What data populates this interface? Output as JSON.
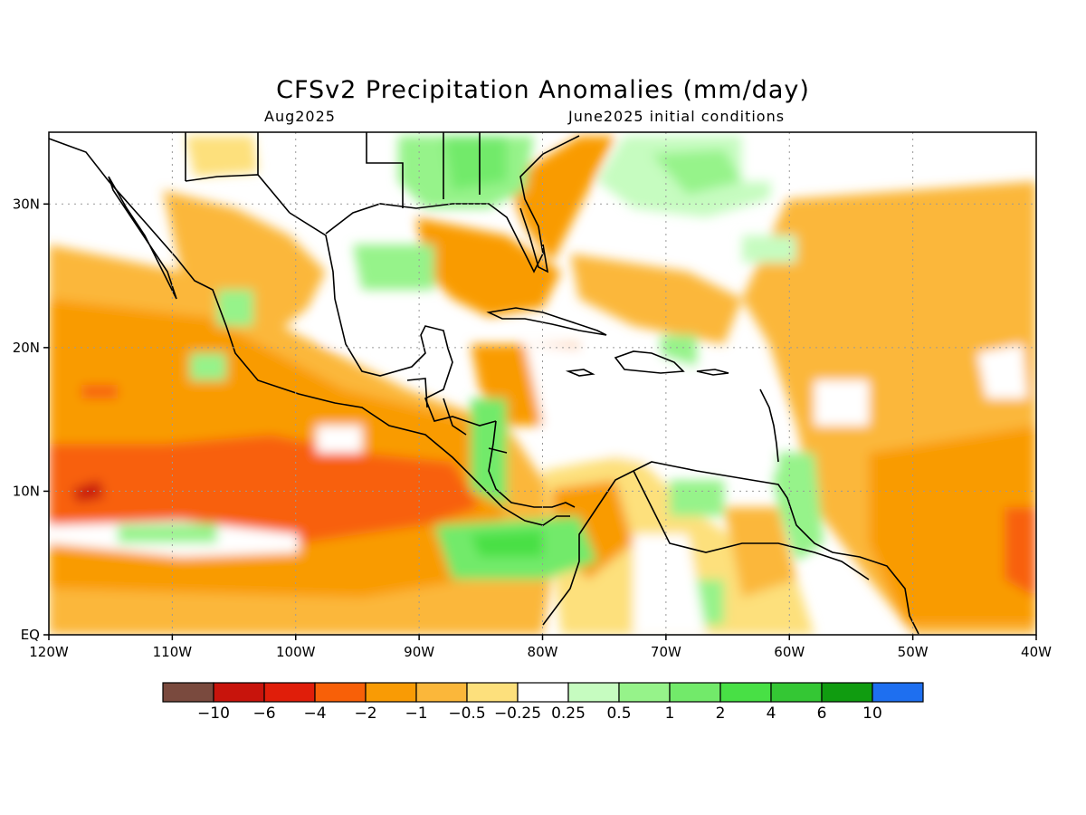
{
  "title": "CFSv2 Precipitation Anomalies (mm/day)",
  "subtitle_left": "Aug2025",
  "subtitle_right": "June2025 initial conditions",
  "map": {
    "lon_range": [
      -120,
      -40
    ],
    "lat_range": [
      0,
      35
    ],
    "x_ticks": [
      {
        "value": -120,
        "label": "120W"
      },
      {
        "value": -110,
        "label": "110W"
      },
      {
        "value": -100,
        "label": "100W"
      },
      {
        "value": -90,
        "label": "90W"
      },
      {
        "value": -80,
        "label": "80W"
      },
      {
        "value": -70,
        "label": "70W"
      },
      {
        "value": -60,
        "label": "60W"
      },
      {
        "value": -50,
        "label": "50W"
      },
      {
        "value": -40,
        "label": "40W"
      }
    ],
    "y_ticks": [
      {
        "value": 0,
        "label": "EQ"
      },
      {
        "value": 10,
        "label": "10N"
      },
      {
        "value": 20,
        "label": "20N"
      },
      {
        "value": 30,
        "label": "30N"
      }
    ],
    "grid": "dotted"
  },
  "colorbar": {
    "colors": [
      "#7a4a3e",
      "#c8140c",
      "#e01e0a",
      "#f86008",
      "#f99b05",
      "#fbb73a",
      "#fde07c",
      "#ffffff",
      "#c6fcc0",
      "#96f38a",
      "#72ea6a",
      "#48e045",
      "#34c734",
      "#109c10",
      "#1e6ff0"
    ],
    "labels": [
      "-10",
      "-6",
      "-4",
      "-2",
      "-1",
      "-0.5",
      "-0.25",
      "0.25",
      "0.5",
      "1",
      "2",
      "4",
      "6",
      "10"
    ]
  }
}
